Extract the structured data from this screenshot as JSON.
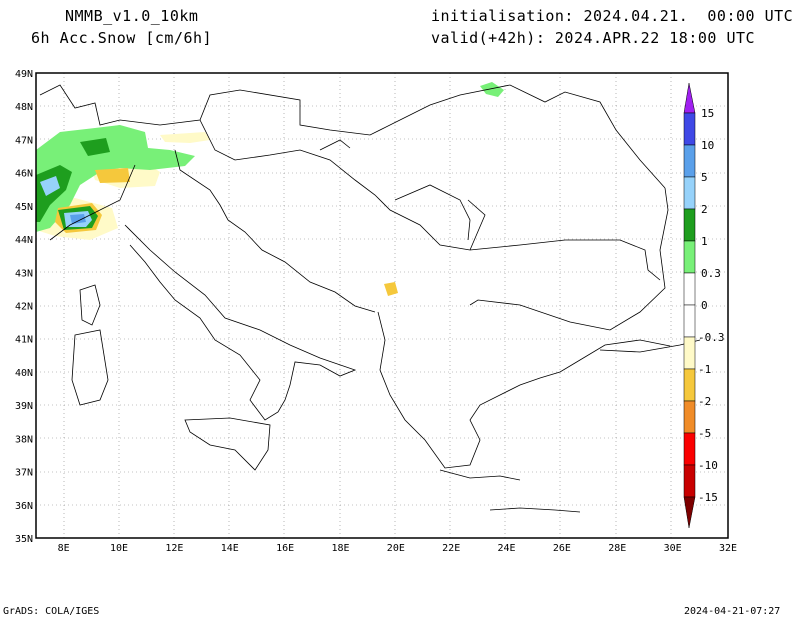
{
  "header": {
    "model": "NMMB_v1.0_10km",
    "field": "6h Acc.Snow [cm/6h]",
    "init": "initialisation: 2024.04.21.  00:00 UTC",
    "valid": "valid(+42h): 2024.APR.22 18:00 UTC"
  },
  "footer": {
    "credit": "GrADS: COLA/IGES",
    "timestamp": "2024-04-21-07:27"
  },
  "map": {
    "lon_range": [
      7,
      32
    ],
    "lat_range": [
      35,
      49
    ],
    "lon_ticks": [
      "8E",
      "10E",
      "12E",
      "14E",
      "16E",
      "18E",
      "20E",
      "22E",
      "24E",
      "26E",
      "28E",
      "30E",
      "32E"
    ],
    "lat_ticks": [
      "35N",
      "36N",
      "37N",
      "38N",
      "39N",
      "40N",
      "41N",
      "42N",
      "43N",
      "44N",
      "45N",
      "46N",
      "47N",
      "48N",
      "49N"
    ],
    "grid": "dotted"
  },
  "colorbar": {
    "labels": [
      "15",
      "10",
      "5",
      "2",
      "1",
      "0.3",
      "0",
      "-0.3",
      "-1",
      "-2",
      "-5",
      "-10",
      "-15"
    ],
    "colors": {
      "snow_gt10": "#a020f0",
      "snow_10_15": "#3f48e6",
      "snow_5_10": "#5aa0ea",
      "snow_2_5": "#96d2fa",
      "snow_1_2": "#1e9e1e",
      "snow_03_1": "#78f078",
      "zero": "#ffffff",
      "melt_03_1": "#fffac8",
      "melt_1_2": "#f5c83c",
      "melt_2_5": "#f08c28",
      "melt_5_10": "#fa0000",
      "melt_10_15": "#c80000",
      "melt_lt15": "#7d0000"
    }
  }
}
